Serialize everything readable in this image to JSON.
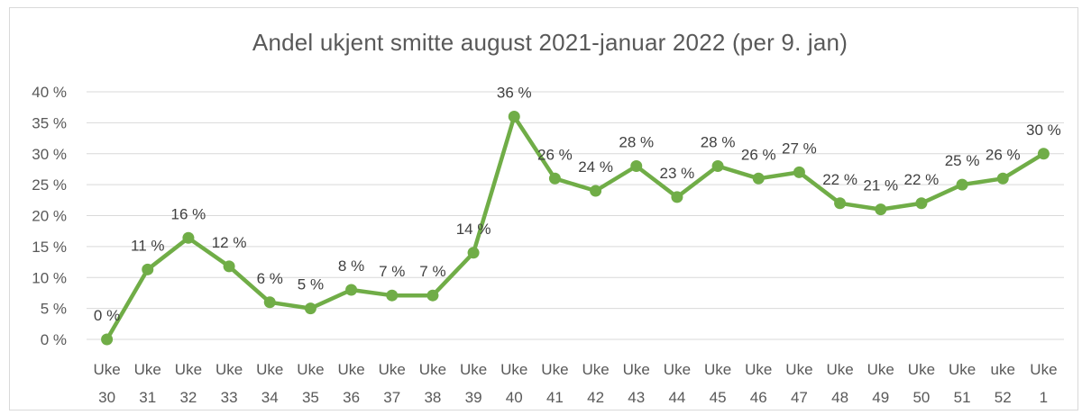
{
  "chart_data": {
    "type": "line",
    "title": "Andel ukjent smitte august 2021-januar 2022 (per 9. jan)",
    "xlabel": "",
    "ylabel": "",
    "ylim": [
      0,
      40
    ],
    "y_ticks": [
      "0 %",
      "5 %",
      "10 %",
      "15 %",
      "20 %",
      "25 %",
      "30 %",
      "35 %",
      "40 %"
    ],
    "grid": "horizontal",
    "legend": "none",
    "categories": [
      [
        "Uke",
        "30"
      ],
      [
        "Uke",
        "31"
      ],
      [
        "Uke",
        "32"
      ],
      [
        "Uke",
        "33"
      ],
      [
        "Uke",
        "34"
      ],
      [
        "Uke",
        "35"
      ],
      [
        "Uke",
        "36"
      ],
      [
        "Uke",
        "37"
      ],
      [
        "Uke",
        "38"
      ],
      [
        "Uke",
        "39"
      ],
      [
        "Uke",
        "40"
      ],
      [
        "Uke",
        "41"
      ],
      [
        "Uke",
        "42"
      ],
      [
        "Uke",
        "43"
      ],
      [
        "Uke",
        "44"
      ],
      [
        "Uke",
        "45"
      ],
      [
        "Uke",
        "46"
      ],
      [
        "Uke",
        "47"
      ],
      [
        "Uke",
        "48"
      ],
      [
        "Uke",
        "49"
      ],
      [
        "Uke",
        "50"
      ],
      [
        "Uke",
        "51"
      ],
      [
        "uke",
        "52"
      ],
      [
        "Uke",
        "1"
      ]
    ],
    "values": [
      0,
      11.3,
      16.4,
      11.8,
      6,
      5,
      8,
      7.1,
      7.1,
      14,
      36,
      26,
      24,
      28,
      23,
      28,
      26,
      27,
      22,
      21,
      22,
      25,
      26,
      30
    ],
    "data_labels": [
      "0 %",
      "11 %",
      "16 %",
      "12 %",
      "6 %",
      "5 %",
      "8 %",
      "7 %",
      "7 %",
      "14 %",
      "36 %",
      "26 %",
      "24 %",
      "28 %",
      "23 %",
      "28 %",
      "26 %",
      "27 %",
      "22 %",
      "21 %",
      "22 %",
      "25 %",
      "26 %",
      "30 %"
    ],
    "colors": {
      "line": "#70ad47",
      "grid": "#d9d9d9",
      "text": "#595959"
    }
  }
}
